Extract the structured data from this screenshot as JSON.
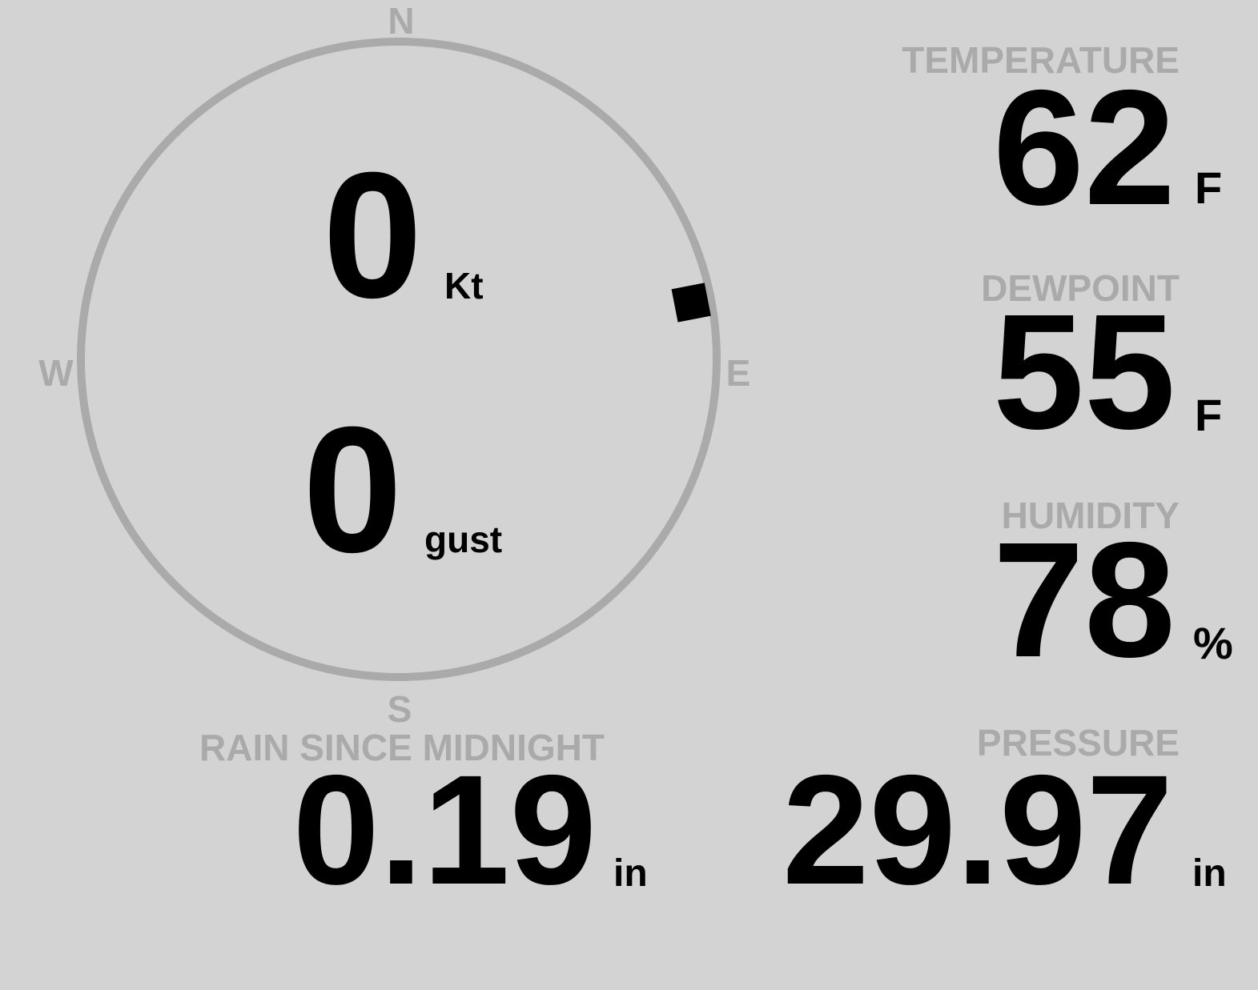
{
  "wind": {
    "speed": "0",
    "speed_unit": "Kt",
    "gust": "0",
    "gust_unit": "gust",
    "direction_deg": 79,
    "compass": {
      "n": "N",
      "e": "E",
      "s": "S",
      "w": "W"
    },
    "ring_color": "#aaaaaa",
    "marker_color": "#000000"
  },
  "temperature": {
    "label": "TEMPERATURE",
    "value": "62",
    "unit": "F"
  },
  "dewpoint": {
    "label": "DEWPOINT",
    "value": "55",
    "unit": "F"
  },
  "humidity": {
    "label": "HUMIDITY",
    "value": "78",
    "unit": "%"
  },
  "rain": {
    "label": "RAIN SINCE MIDNIGHT",
    "value": "0.19",
    "unit": "in"
  },
  "pressure": {
    "label": "PRESSURE",
    "value": "29.97",
    "unit": "in"
  }
}
